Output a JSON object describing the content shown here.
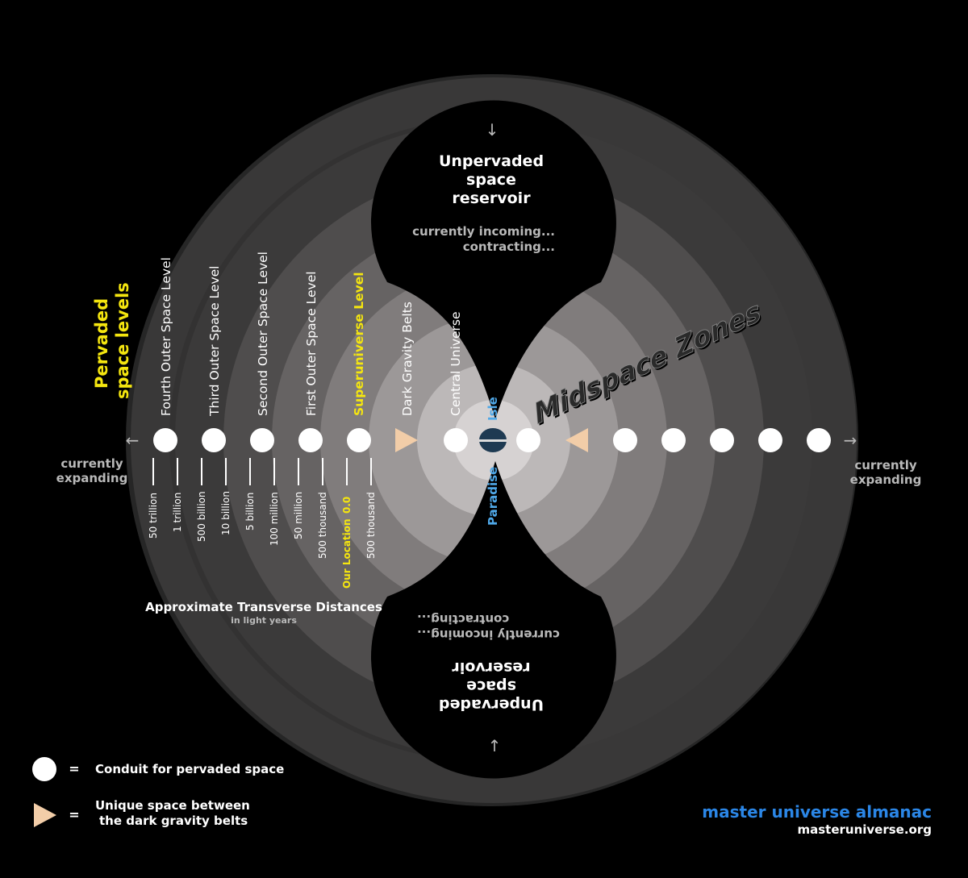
{
  "colors": {
    "background": "#000000",
    "outer_disc": "#262626",
    "yellow": "#f5e60f",
    "blue": "#4fa8e8",
    "brand_blue": "#2b86e6",
    "triangle": "#f2cda8",
    "paradise": "#1e3a52"
  },
  "reservoir_top": {
    "title_lines": [
      "Unpervaded",
      "space",
      "reservoir"
    ],
    "status_lines": [
      "currently incoming...",
      "contracting..."
    ]
  },
  "reservoir_bottom": {
    "title_lines": [
      "Unpervaded",
      "space",
      "reservoir"
    ],
    "status_lines": [
      "currently incoming...",
      "contracting..."
    ]
  },
  "pervaded_title": [
    "Pervaded",
    "space levels"
  ],
  "level_labels": [
    "Fourth Outer Space Level",
    "Third Outer Space Level",
    "Second Outer Space Level",
    "First Outer Space Level",
    "Superuniverse Level",
    "Dark Gravity Belts",
    "Central Universe"
  ],
  "isle_label": "Isle",
  "paradise_label": "Paradise",
  "midspace_label": "Midspace Zones",
  "expanding_left": [
    "currently",
    "expanding"
  ],
  "expanding_right": [
    "currently",
    "expanding"
  ],
  "distances": [
    "50 trillion",
    "1 trillion",
    "500 billion",
    "10 billion",
    "5 billion",
    "100 million",
    "50 million",
    "500 thousand",
    "Our Location",
    "0.0",
    "500 thousand"
  ],
  "distances_caption": {
    "title": "Approximate Transverse Distances",
    "subtitle": "in light years"
  },
  "legend": {
    "conduit_eq": "=",
    "conduit_text": "Conduit for pervaded space",
    "unique_eq": "=",
    "unique_text_lines": [
      "Unique space between",
      "the dark gravity belts"
    ]
  },
  "brand": {
    "name": "master universe almanac",
    "url": "masteruniverse.org"
  },
  "arrows": {
    "down": "↓",
    "up": "↑",
    "left": "←",
    "right": "→"
  }
}
